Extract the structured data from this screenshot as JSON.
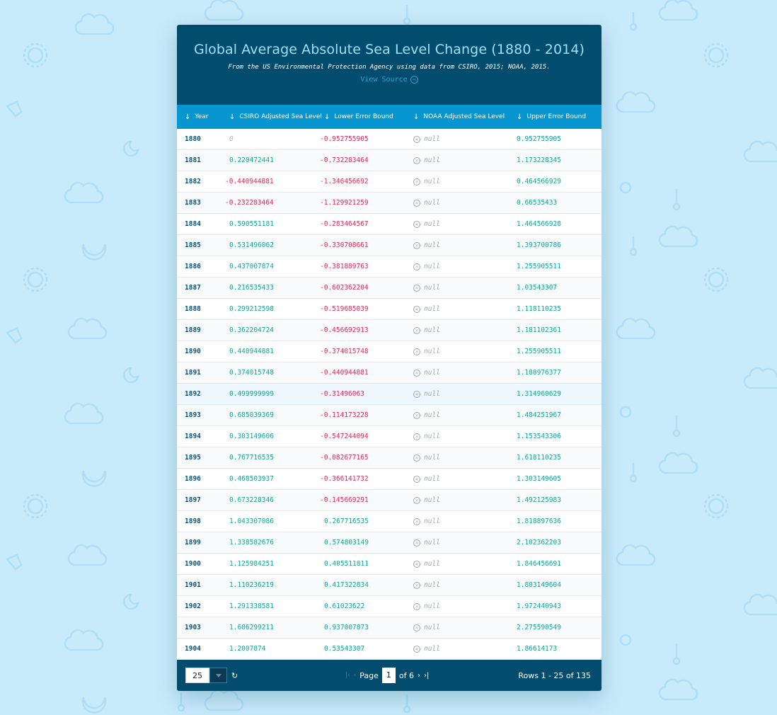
{
  "header": {
    "title": "Global Average Absolute Sea Level Change (1880 - 2014)",
    "subtitle": "From the US Environmental Protection Agency using data from CSIRO, 2015; NOAA, 2015.",
    "source_link": "View Source"
  },
  "columns": [
    "Year",
    "CSIRO Adjusted Sea Level",
    "Lower Error Bound",
    "NOAA Adjusted Sea Level",
    "Upper Error Bound"
  ],
  "rows": [
    [
      "1880",
      "0",
      "-0.952755905",
      "null",
      "0.952755905"
    ],
    [
      "1881",
      "0.220472441",
      "-0.732283464",
      "null",
      "1.173228345"
    ],
    [
      "1882",
      "-0.440944881",
      "-1.346456692",
      "null",
      "0.464566929"
    ],
    [
      "1883",
      "-0.232283464",
      "-1.129921259",
      "null",
      "0.66535433"
    ],
    [
      "1884",
      "0.590551181",
      "-0.283464567",
      "null",
      "1.464566928"
    ],
    [
      "1885",
      "0.531496062",
      "-0.330708661",
      "null",
      "1.393700786"
    ],
    [
      "1886",
      "0.437007874",
      "-0.381889763",
      "null",
      "1.255905511"
    ],
    [
      "1887",
      "0.216535433",
      "-0.602362204",
      "null",
      "1.03543307"
    ],
    [
      "1888",
      "0.299212598",
      "-0.519685039",
      "null",
      "1.118110235"
    ],
    [
      "1889",
      "0.362204724",
      "-0.456692913",
      "null",
      "1.181102361"
    ],
    [
      "1890",
      "0.440944881",
      "-0.374015748",
      "null",
      "1.255905511"
    ],
    [
      "1891",
      "0.374015748",
      "-0.440944881",
      "null",
      "1.188976377"
    ],
    [
      "1892",
      "0.499999999",
      "-0.31496063",
      "null",
      "1.314960629"
    ],
    [
      "1893",
      "0.685039369",
      "-0.114173228",
      "null",
      "1.484251967"
    ],
    [
      "1894",
      "0.303149606",
      "-0.547244094",
      "null",
      "1.153543306"
    ],
    [
      "1895",
      "0.767716535",
      "-0.082677165",
      "null",
      "1.618110235"
    ],
    [
      "1896",
      "0.468503937",
      "-0.366141732",
      "null",
      "1.303149605"
    ],
    [
      "1897",
      "0.673228346",
      "-0.145669291",
      "null",
      "1.492125983"
    ],
    [
      "1898",
      "1.043307086",
      "0.267716535",
      "null",
      "1.818897636"
    ],
    [
      "1899",
      "1.338582676",
      "0.574803149",
      "null",
      "2.102362203"
    ],
    [
      "1900",
      "1.125984251",
      "0.405511811",
      "null",
      "1.846456691"
    ],
    [
      "1901",
      "1.110236219",
      "0.417322834",
      "null",
      "1.803149604"
    ],
    [
      "1902",
      "1.291338581",
      "0.61023622",
      "null",
      "1.972440943"
    ],
    [
      "1903",
      "1.606299211",
      "0.937007873",
      "null",
      "2.275590549"
    ],
    [
      "1904",
      "1.2007874",
      "0.53543307",
      "null",
      "1.86614173"
    ]
  ],
  "highlighted_row_index": 12,
  "footer": {
    "page_size": "25",
    "page_label": "Page",
    "current_page": "1",
    "of_pages": "of 6",
    "rows_info": "Rows 1 - 25 of 135"
  },
  "colors": {
    "background": "#c8ebfb",
    "header": "#024d6e",
    "table_header": "#0896d0",
    "positive": "#12a596",
    "negative": "#dd2a5a"
  }
}
